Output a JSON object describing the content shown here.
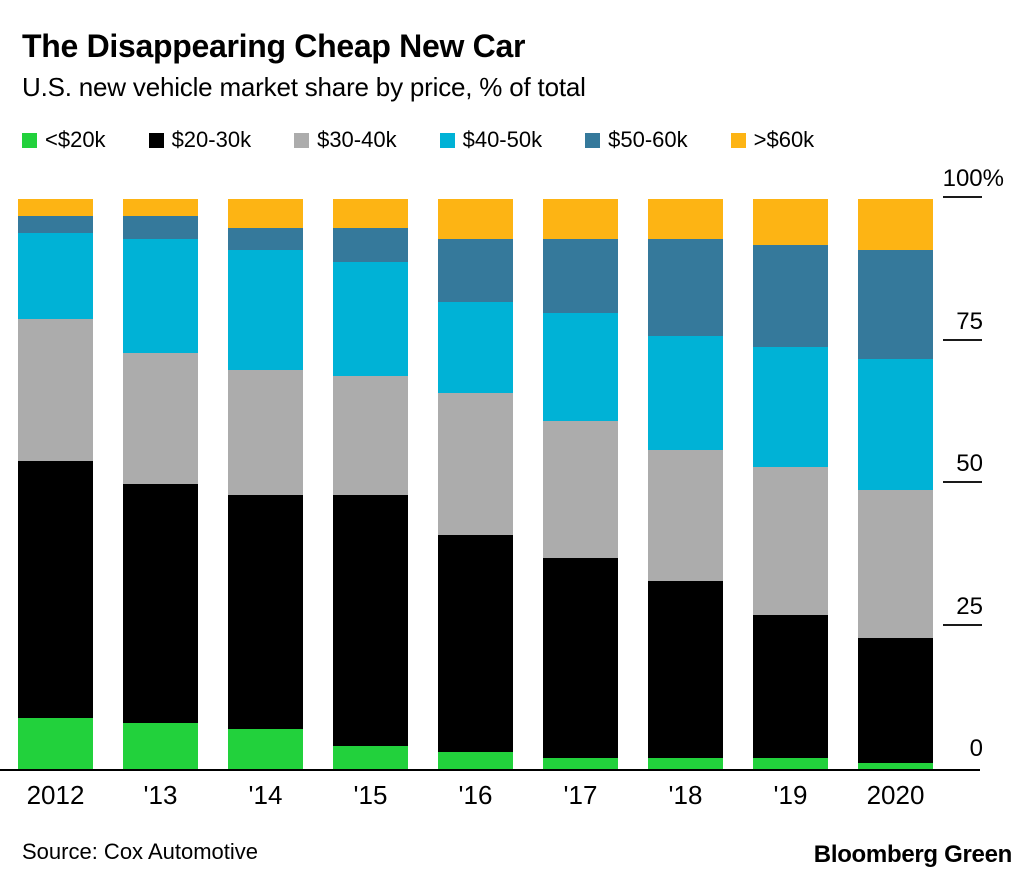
{
  "header": {
    "title": "The Disappearing Cheap New Car",
    "subtitle": "U.S. new vehicle market share by price, % of total"
  },
  "chart_data": {
    "type": "bar",
    "stacked": true,
    "unit": "%",
    "title": "The Disappearing Cheap New Car",
    "subtitle": "U.S. new vehicle market share by price, % of total",
    "categories": [
      "2012",
      "'13",
      "'14",
      "'15",
      "'16",
      "'17",
      "'18",
      "'19",
      "2020"
    ],
    "series": [
      {
        "name": "<$20k",
        "color": "#22D13C",
        "values": [
          9,
          8,
          7,
          4,
          3,
          2,
          2,
          2,
          1
        ]
      },
      {
        "name": "$20-30k",
        "color": "#000000",
        "values": [
          45,
          42,
          41,
          44,
          38,
          35,
          31,
          25,
          22
        ]
      },
      {
        "name": "$30-40k",
        "color": "#ACACAC",
        "values": [
          25,
          23,
          22,
          21,
          25,
          24,
          23,
          26,
          26
        ]
      },
      {
        "name": "$40-50k",
        "color": "#00B2D6",
        "values": [
          15,
          20,
          21,
          20,
          16,
          19,
          20,
          21,
          23
        ]
      },
      {
        "name": "$50-60k",
        "color": "#35799B",
        "values": [
          3,
          4,
          4,
          6,
          11,
          13,
          17,
          18,
          19
        ]
      },
      {
        "name": ">$60k",
        "color": "#FDB414",
        "values": [
          3,
          3,
          5,
          5,
          7,
          7,
          7,
          8,
          9
        ]
      }
    ],
    "ylim": [
      0,
      100
    ],
    "yticks": [
      {
        "value": 100,
        "label": "100%"
      },
      {
        "value": 75,
        "label": "75"
      },
      {
        "value": 50,
        "label": "50"
      },
      {
        "value": 25,
        "label": "25"
      },
      {
        "value": 0,
        "label": "0"
      }
    ],
    "grid": false,
    "legend_position": "top"
  },
  "footer": {
    "source": "Source: Cox Automotive",
    "brand": "Bloomberg Green"
  }
}
